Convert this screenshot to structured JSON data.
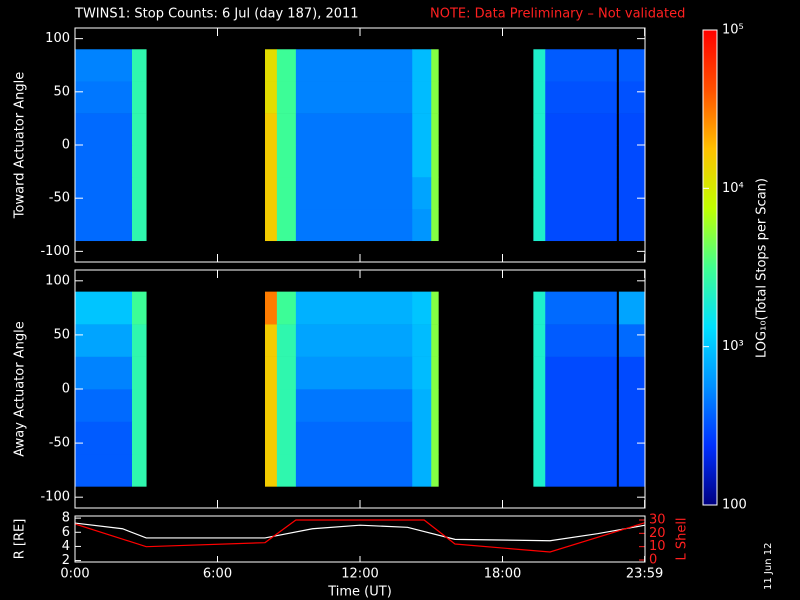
{
  "chart_data": [
    {
      "type": "heatmap",
      "title": "TWINS1: Stop Counts:  6 Jul (day 187), 2011",
      "note": "NOTE: Data Preliminary – Not validated",
      "ylabel": "Toward Actuator Angle",
      "xlim": [
        0,
        24
      ],
      "ylim": [
        -110,
        110
      ],
      "yticks": [
        -100,
        -50,
        0,
        50,
        100
      ],
      "x": [
        0,
        2.4,
        3.0,
        8.0,
        8.5,
        9.3,
        14.2,
        15.0,
        15.3,
        19.3,
        19.8,
        22.8,
        22.9,
        24
      ],
      "y": [
        -90,
        -60,
        -30,
        0,
        30,
        60,
        90
      ],
      "values": [
        [
          400,
          2500,
          null,
          15000,
          3000,
          450,
          600,
          5000,
          null,
          2000,
          300,
          null,
          300
        ],
        [
          400,
          2500,
          null,
          15000,
          3000,
          450,
          700,
          5000,
          null,
          2000,
          300,
          null,
          300
        ],
        [
          400,
          2500,
          null,
          15000,
          3000,
          450,
          900,
          5000,
          null,
          2000,
          300,
          null,
          300
        ],
        [
          400,
          2500,
          null,
          15000,
          3000,
          450,
          900,
          5000,
          null,
          2000,
          300,
          null,
          300
        ],
        [
          450,
          2500,
          null,
          12000,
          3000,
          500,
          900,
          5000,
          null,
          2000,
          320,
          null,
          320
        ],
        [
          500,
          2500,
          null,
          12000,
          3000,
          500,
          900,
          5000,
          null,
          2000,
          350,
          null,
          350
        ]
      ],
      "zlabel": "LOG₁₀(Total Stops per Scan)",
      "zlim": [
        100,
        100000
      ],
      "zlog": true,
      "zticks": [
        100,
        {
          "value": 1000,
          "label": "10³"
        },
        {
          "value": 10000,
          "label": "10⁴"
        },
        {
          "value": 100000,
          "label": "10⁵"
        }
      ],
      "colormap": [
        "#000080",
        "#0030ff",
        "#0090ff",
        "#00e0ff",
        "#40ff90",
        "#c0ff00",
        "#ffc000",
        "#ff5000",
        "#ff0000"
      ]
    },
    {
      "type": "heatmap",
      "ylabel": "Away Actuator Angle",
      "xlim": [
        0,
        24
      ],
      "ylim": [
        -110,
        110
      ],
      "yticks": [
        -100,
        -50,
        0,
        50,
        100
      ],
      "x": [
        0,
        2.4,
        3.0,
        8.0,
        8.5,
        9.3,
        14.2,
        15.0,
        15.3,
        19.3,
        19.8,
        22.8,
        22.9,
        24
      ],
      "y": [
        -90,
        -60,
        -30,
        0,
        30,
        60,
        90
      ],
      "values": [
        [
          350,
          2500,
          null,
          15000,
          2500,
          400,
          800,
          5000,
          null,
          2000,
          300,
          null,
          300
        ],
        [
          350,
          2500,
          null,
          15000,
          2500,
          400,
          800,
          5000,
          null,
          2000,
          300,
          null,
          300
        ],
        [
          400,
          2500,
          null,
          15000,
          2500,
          450,
          800,
          5000,
          null,
          2000,
          300,
          null,
          300
        ],
        [
          500,
          2500,
          null,
          15000,
          2500,
          600,
          900,
          5000,
          null,
          2000,
          300,
          null,
          300
        ],
        [
          700,
          2500,
          null,
          15000,
          2500,
          700,
          900,
          5000,
          null,
          2000,
          350,
          null,
          400
        ],
        [
          1000,
          3000,
          null,
          30000,
          3000,
          800,
          1000,
          5000,
          null,
          2000,
          400,
          null,
          700
        ]
      ]
    },
    {
      "type": "line",
      "xlabel": "Time (UT)",
      "ylabel": "R [RE]",
      "y2label": "L Shell",
      "annotation": "11 Jun 12",
      "xlim": [
        0,
        24
      ],
      "xticks": [
        {
          "value": 0,
          "label": "0:00"
        },
        {
          "value": 6,
          "label": "6:00"
        },
        {
          "value": 12,
          "label": "12:00"
        },
        {
          "value": 18,
          "label": "18:00"
        },
        {
          "value": 23.983,
          "label": "23:59"
        }
      ],
      "ylim": [
        1.8,
        8.3
      ],
      "yticks": [
        2,
        4,
        6,
        8
      ],
      "y2lim": [
        -1.5,
        33
      ],
      "y2ticks": [
        0,
        10,
        20,
        30
      ],
      "series": [
        {
          "name": "R",
          "color": "#ffffff",
          "x": [
            0,
            2,
            3,
            8,
            10,
            12,
            14,
            16,
            20,
            22,
            24
          ],
          "values": [
            7.3,
            6.5,
            5.2,
            5.2,
            6.5,
            7.0,
            6.7,
            5.0,
            4.8,
            5.8,
            7.0
          ]
        },
        {
          "name": "L Shell",
          "color": "#ff0000",
          "axis": "y2",
          "x": [
            0,
            3,
            8,
            9.3,
            14.7,
            16,
            20,
            24
          ],
          "values": [
            27,
            10,
            13,
            30,
            30,
            12,
            6,
            28
          ]
        }
      ]
    }
  ]
}
